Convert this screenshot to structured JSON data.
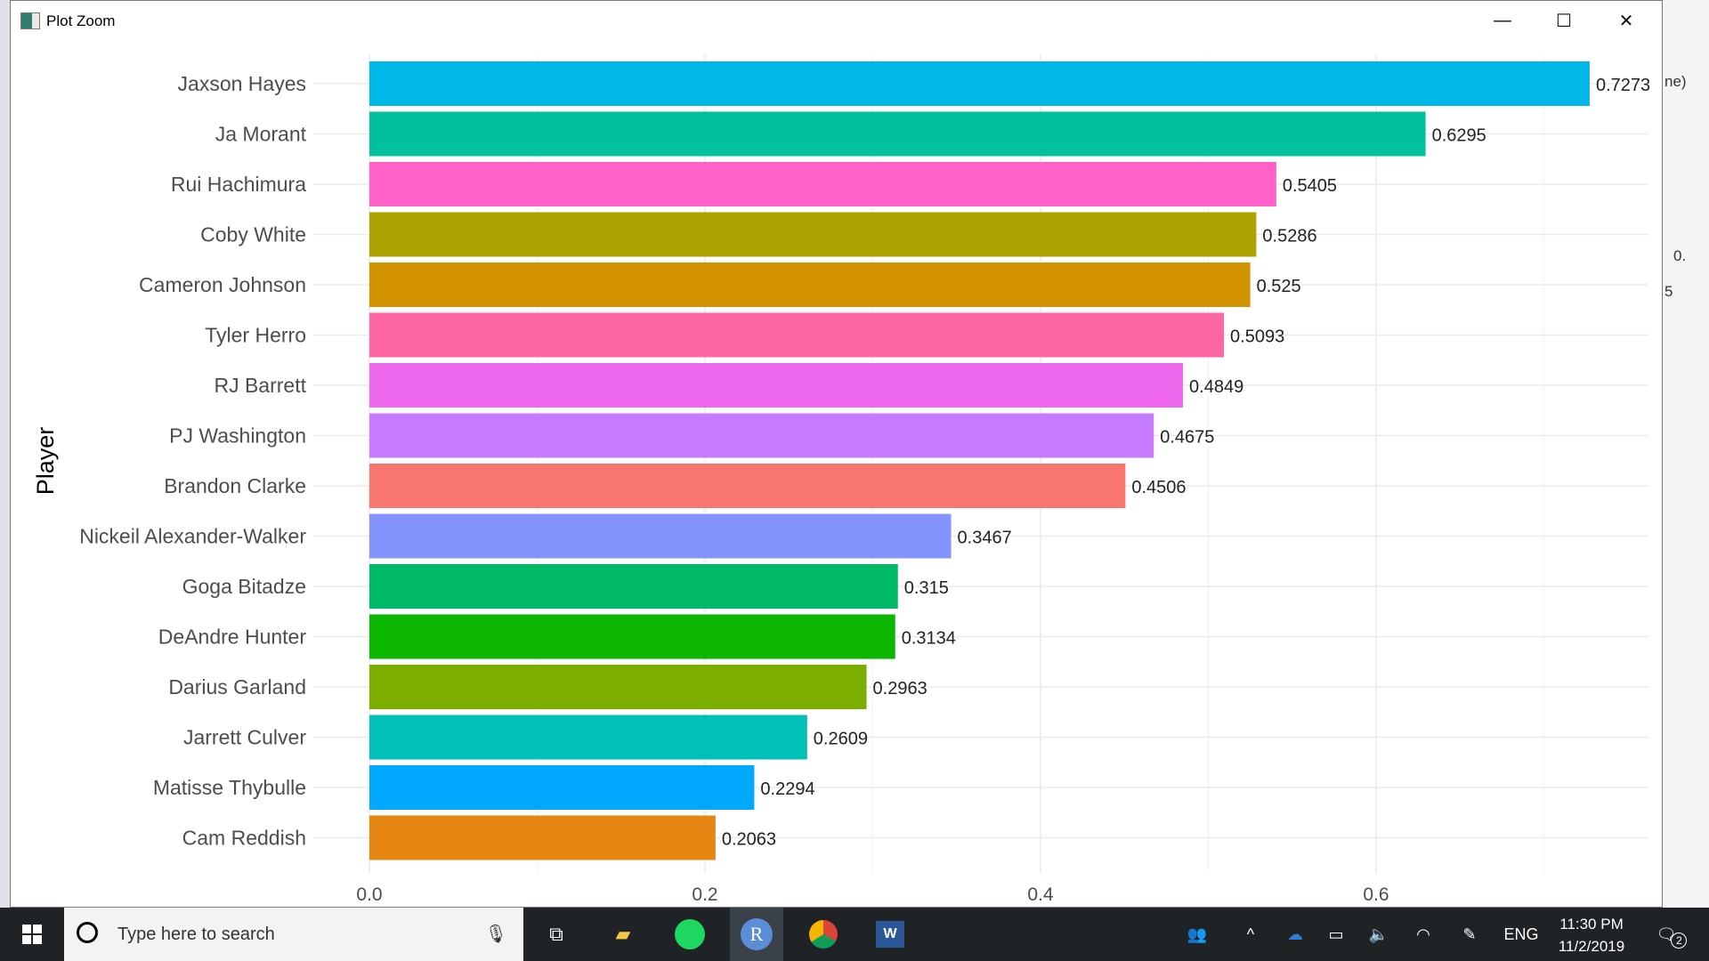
{
  "window": {
    "title": "Plot Zoom",
    "minimize": "—",
    "maximize": "☐",
    "close": "✕"
  },
  "background_app": {
    "fragment1": "ne)",
    "fragment2": "0.",
    "fragment3": "5"
  },
  "chart_data": {
    "type": "bar",
    "orientation": "horizontal",
    "ylabel": "Player",
    "xlabel": "",
    "xlim": [
      0,
      0.75
    ],
    "xticks": [
      "0.0",
      "0.2",
      "0.4",
      "0.6"
    ],
    "grid": true,
    "categories": [
      "Jaxson Hayes",
      "Ja Morant",
      "Rui Hachimura",
      "Coby White",
      "Cameron Johnson",
      "Tyler Herro",
      "RJ Barrett",
      "PJ Washington",
      "Brandon Clarke",
      "Nickeil Alexander-Walker",
      "Goga Bitadze",
      "DeAndre Hunter",
      "Darius Garland",
      "Jarrett Culver",
      "Matisse Thybulle",
      "Cam Reddish"
    ],
    "values": [
      0.7273,
      0.6295,
      0.5405,
      0.5286,
      0.525,
      0.5093,
      0.4849,
      0.4675,
      0.4506,
      0.3467,
      0.315,
      0.3134,
      0.2963,
      0.2609,
      0.2294,
      0.2063
    ],
    "labels": [
      "0.7273",
      "0.6295",
      "0.5405",
      "0.5286",
      "0.525",
      "0.5093",
      "0.4849",
      "0.4675",
      "0.4506",
      "0.3467",
      "0.315",
      "0.3134",
      "0.2963",
      "0.2609",
      "0.2294",
      "0.2063"
    ],
    "colors": [
      "#00B8E7",
      "#00C19C",
      "#FF61C9",
      "#ABA300",
      "#D39200",
      "#FF67A4",
      "#ED68ED",
      "#C77CFF",
      "#F8766D",
      "#8494FF",
      "#00BA6A",
      "#0CB702",
      "#7CAE00",
      "#00C0B8",
      "#00A9FF",
      "#E68613"
    ]
  },
  "taskbar": {
    "search_placeholder": "Type here to search",
    "time": "11:30 PM",
    "date": "11/2/2019",
    "language": "ENG",
    "notifications": "2",
    "apps": [
      "task-view",
      "file-explorer",
      "spotify",
      "r",
      "chrome",
      "word"
    ]
  }
}
